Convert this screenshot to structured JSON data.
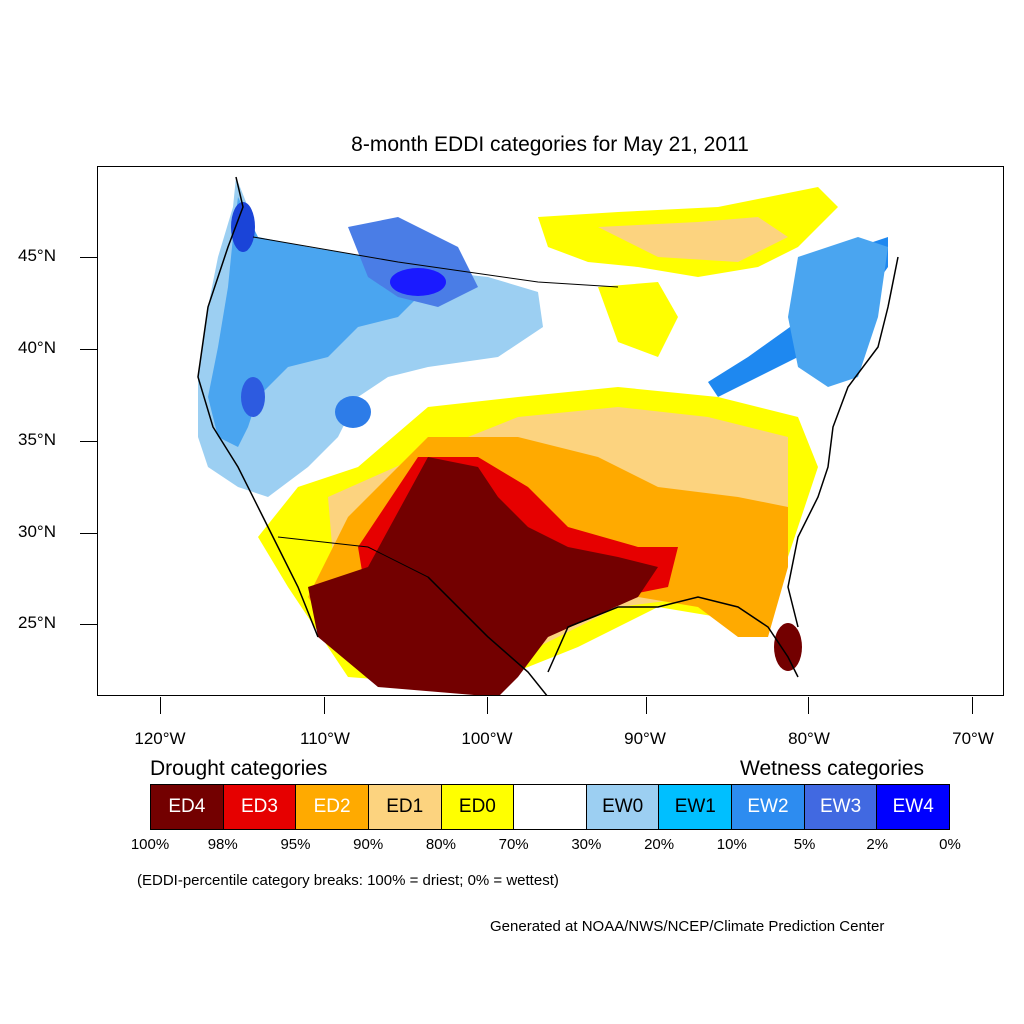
{
  "title": "8-month EDDI categories for May 21, 2011",
  "latitude_labels": [
    "45°N",
    "40°N",
    "35°N",
    "30°N",
    "25°N"
  ],
  "longitude_labels": [
    "120°W",
    "110°W",
    "100°W",
    "90°W",
    "80°W",
    "70°W"
  ],
  "legend": {
    "drought_heading": "Drought categories",
    "wetness_heading": "Wetness categories",
    "categories": [
      {
        "label": "ED4",
        "color": "#730000",
        "text_color": "#ffffff"
      },
      {
        "label": "ED3",
        "color": "#e60000",
        "text_color": "#ffffff"
      },
      {
        "label": "ED2",
        "color": "#ffaa00",
        "text_color": "#ffffff"
      },
      {
        "label": "ED1",
        "color": "#fcd37f",
        "text_color": "#000000"
      },
      {
        "label": "ED0",
        "color": "#ffff00",
        "text_color": "#000000"
      },
      {
        "label": "",
        "color": "#ffffff",
        "text_color": "#000000"
      },
      {
        "label": "EW0",
        "color": "#9ccff2",
        "text_color": "#000000"
      },
      {
        "label": "EW1",
        "color": "#00bfff",
        "text_color": "#000000"
      },
      {
        "label": "EW2",
        "color": "#2d8cf0",
        "text_color": "#ffffff"
      },
      {
        "label": "EW3",
        "color": "#4169e1",
        "text_color": "#ffffff"
      },
      {
        "label": "EW4",
        "color": "#0000ff",
        "text_color": "#ffffff"
      }
    ],
    "breaks": [
      "100%",
      "98%",
      "95%",
      "90%",
      "80%",
      "70%",
      "30%",
      "20%",
      "10%",
      "5%",
      "2%",
      "0%"
    ]
  },
  "note": "(EDDI-percentile category breaks: 100% = driest; 0% = wettest)",
  "credit": "Generated at NOAA/NWS/NCEP/Climate Prediction Center"
}
